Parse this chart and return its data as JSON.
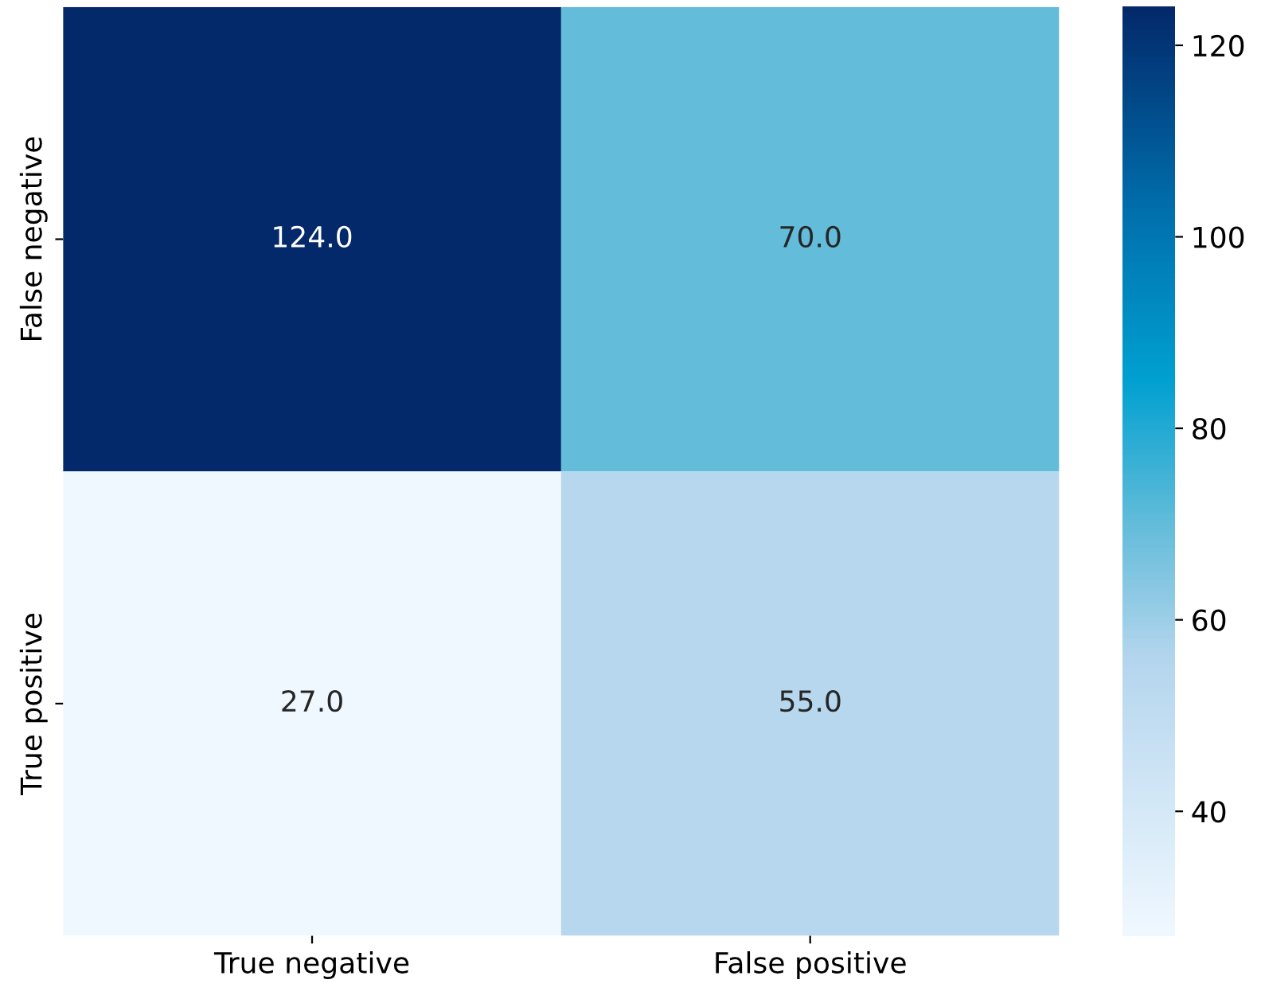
{
  "chart_data": {
    "type": "heatmap",
    "categories": [
      "True negative",
      "False positive"
    ],
    "y_categories": [
      "False negative",
      "True positive"
    ],
    "cells": [
      [
        124,
        70
      ],
      [
        27,
        55
      ]
    ],
    "cell_labels": [
      [
        "124.0",
        "70.0"
      ],
      [
        "27.0",
        "55.0"
      ]
    ],
    "clim": [
      27,
      124
    ],
    "cticks": [
      40,
      60,
      80,
      100,
      120
    ]
  }
}
